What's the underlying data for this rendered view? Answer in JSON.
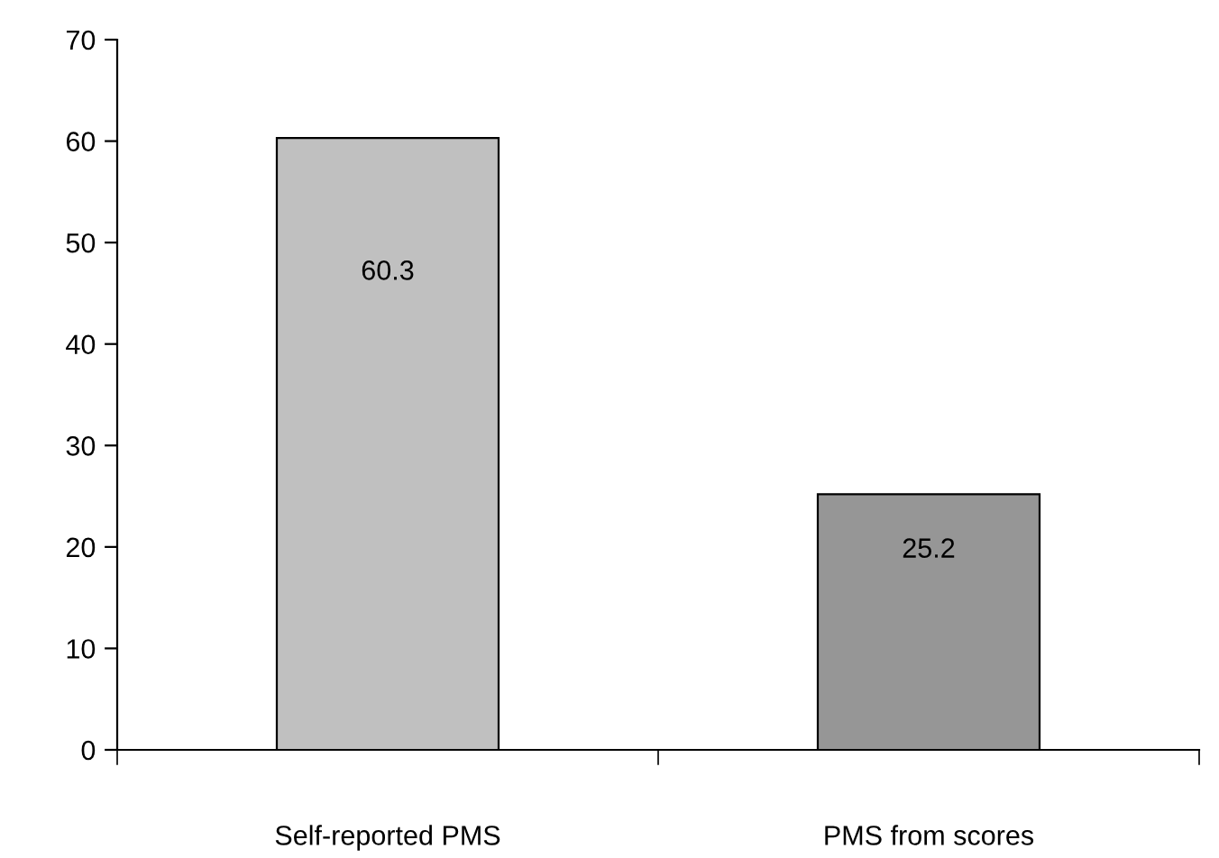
{
  "chart_data": {
    "type": "bar",
    "categories": [
      "Self-reported PMS",
      "PMS from scores"
    ],
    "values": [
      60.3,
      25.2
    ],
    "colors": [
      "#c0c0c0",
      "#969696"
    ],
    "ylim": [
      0,
      70
    ],
    "yticks": [
      0,
      10,
      20,
      30,
      40,
      50,
      60,
      70
    ],
    "data_labels": true,
    "grid": false,
    "legend": false
  }
}
